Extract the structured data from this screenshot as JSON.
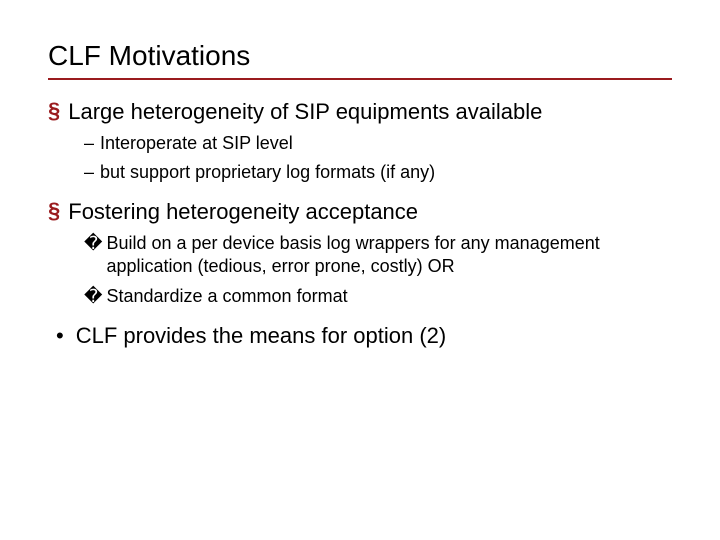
{
  "colors": {
    "accent": "#9a1b1e",
    "text": "#000000",
    "background": "#ffffff"
  },
  "markers": {
    "square": "§",
    "dash": "–",
    "checkbox": "�",
    "bullet": "•"
  },
  "title": "CLF Motivations",
  "items": [
    {
      "level": "lvl1",
      "marker": "square",
      "text": "Large heterogeneity of SIP equipments available"
    },
    {
      "level": "lvl2",
      "marker": "dash",
      "text": "Interoperate at SIP level"
    },
    {
      "level": "lvl2",
      "marker": "dash",
      "text": "but support proprietary log formats (if any)",
      "gapAfter": true
    },
    {
      "level": "lvl1",
      "marker": "square",
      "text": "Fostering heterogeneity acceptance"
    },
    {
      "level": "lvl2b",
      "marker": "checkbox",
      "text": "Build on a per device basis log wrappers for any management application (tedious, error prone, costly) OR"
    },
    {
      "level": "lvl2b",
      "marker": "checkbox",
      "text": "Standardize a common format",
      "gapAfter": true
    },
    {
      "level": "lvl1round",
      "marker": "bullet",
      "text": "CLF provides the means for option (2)"
    }
  ]
}
